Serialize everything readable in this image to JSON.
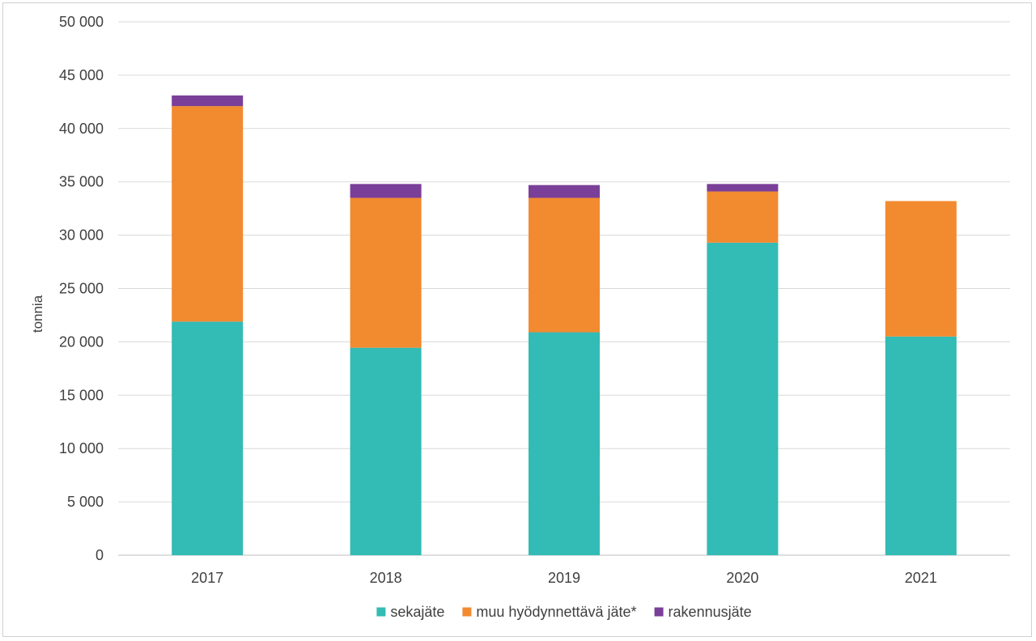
{
  "chart_data": {
    "type": "bar",
    "stacked": true,
    "categories": [
      "2017",
      "2018",
      "2019",
      "2020",
      "2021"
    ],
    "series": [
      {
        "name": "sekajäte",
        "color": "#33bbb5",
        "values": [
          21900,
          19450,
          20900,
          29300,
          20500
        ]
      },
      {
        "name": "muu hyödynnettävä jäte*",
        "color": "#f28a30",
        "values": [
          20200,
          14050,
          12600,
          4800,
          12700
        ]
      },
      {
        "name": "rakennusjäte",
        "color": "#7a3f98",
        "values": [
          1000,
          1300,
          1200,
          700,
          0
        ]
      }
    ],
    "ylabel": "tonnia",
    "xlabel": "",
    "ylim": [
      0,
      50000
    ],
    "yticks": [
      0,
      5000,
      10000,
      15000,
      20000,
      25000,
      30000,
      35000,
      40000,
      45000,
      50000
    ],
    "ytick_labels": [
      "0",
      "5 000",
      "10 000",
      "15 000",
      "20 000",
      "25 000",
      "30 000",
      "35 000",
      "40 000",
      "45 000",
      "50 000"
    ],
    "grid": true,
    "legend_position": "bottom"
  }
}
